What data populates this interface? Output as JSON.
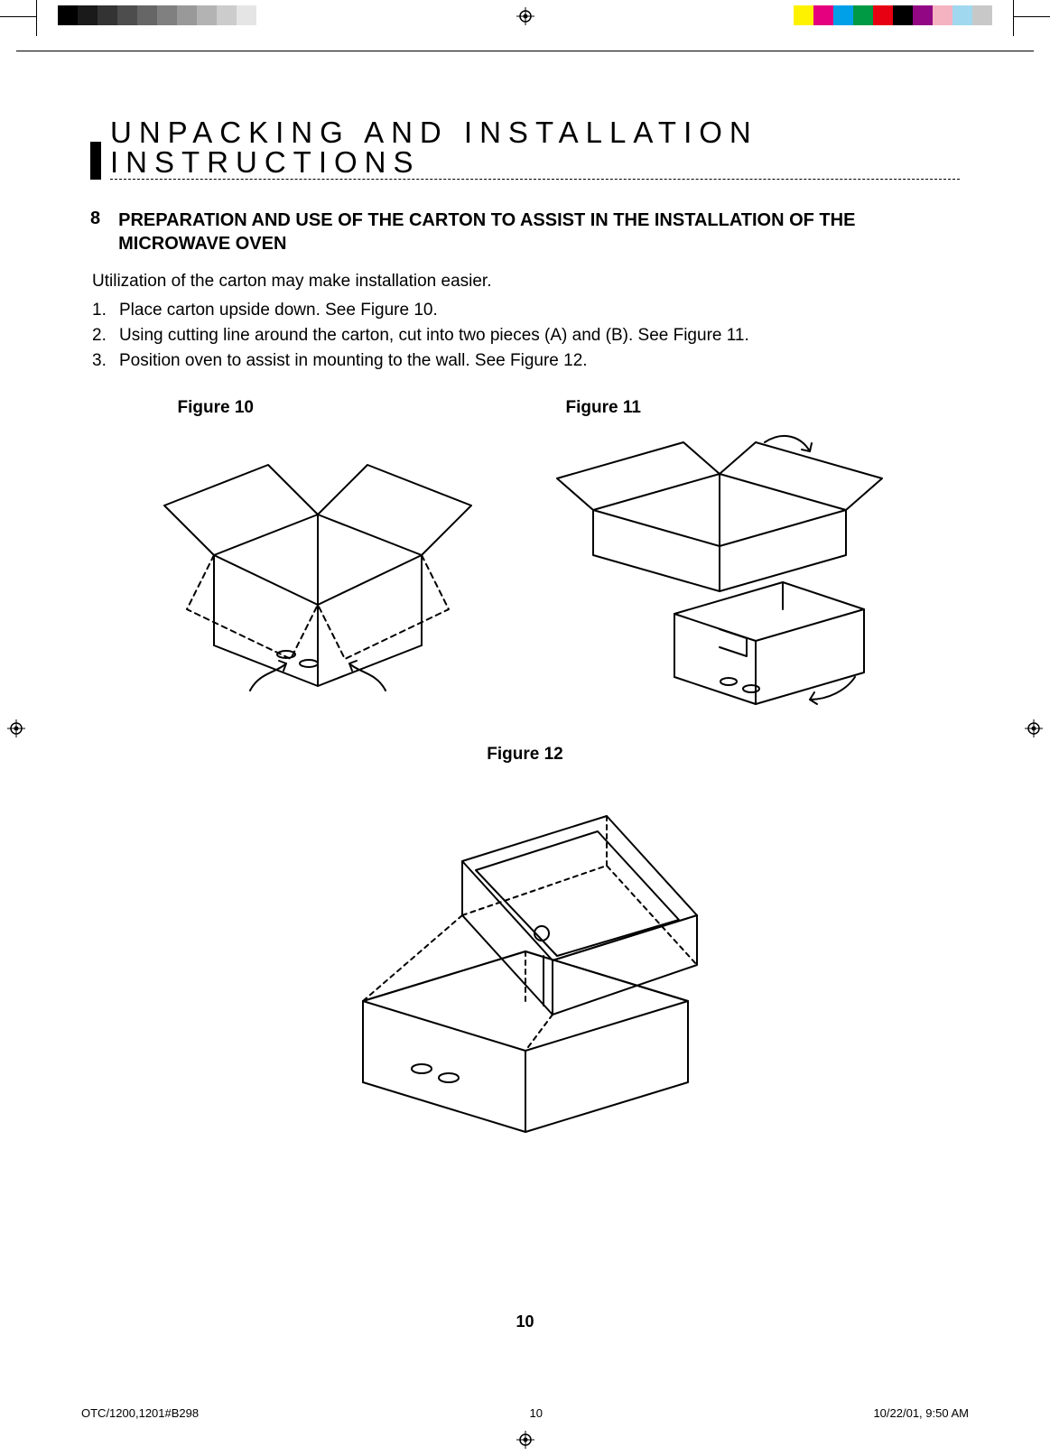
{
  "colorbar_grayscale": [
    "#000000",
    "#1a1a1a",
    "#333333",
    "#4d4d4d",
    "#666666",
    "#808080",
    "#999999",
    "#b3b3b3",
    "#cccccc",
    "#e5e5e5",
    "#ffffff"
  ],
  "colorbar_process": [
    "#fff200",
    "#e4007f",
    "#00a0e9",
    "#009944",
    "#e60012",
    "#000000",
    "#920783",
    "#f5b2c1",
    "#a0d8ef",
    "#c8c8c8"
  ],
  "section_title": "UNPACKING AND INSTALLATION INSTRUCTIONS",
  "heading_number": "8",
  "heading_text": "PREPARATION AND USE OF THE CARTON TO ASSIST IN THE INSTALLATION OF THE MICROWAVE OVEN",
  "intro": "Utilization of the carton may make installation easier.",
  "steps": [
    {
      "n": "1.",
      "t": "Place carton upside down. See Figure 10."
    },
    {
      "n": "2.",
      "t": "Using cutting line around the carton, cut into two pieces (A) and (B). See Figure 11."
    },
    {
      "n": "3.",
      "t": "Position oven to assist in mounting to the wall. See Figure 12."
    }
  ],
  "fig10_label": "Figure 10",
  "fig11_label": "Figure 11",
  "fig12_label": "Figure 12",
  "page_number": "10",
  "footer_left": "OTC/1200,1201#B298",
  "footer_mid": "10",
  "footer_right": "10/22/01, 9:50 AM",
  "line_stroke": "#000000",
  "line_width": 2,
  "dash": "6 5"
}
